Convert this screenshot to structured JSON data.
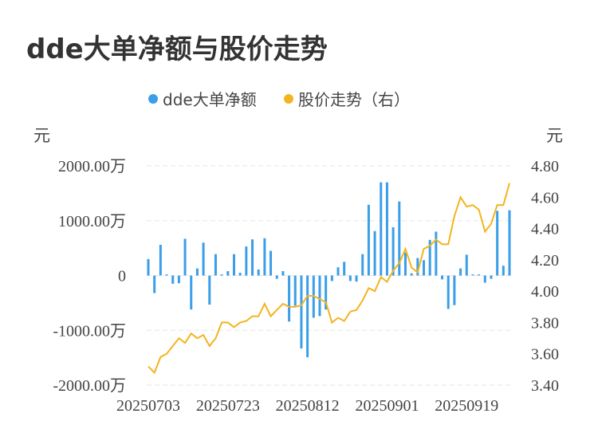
{
  "title": "dde大单净额与股价走势",
  "chart_data": {
    "type": "bar+line",
    "legend": [
      {
        "name": "dde大单净额",
        "color": "#3a9ee8"
      },
      {
        "name": "股价走势（右）",
        "color": "#f3b41f"
      }
    ],
    "left_unit": "元",
    "right_unit": "元",
    "left_ticks": [
      "2000.00万",
      "1000.00万",
      "0",
      "-1000.00万",
      "-2000.00万"
    ],
    "left_ylim": [
      -2000,
      2000
    ],
    "right_ticks": [
      "4.80",
      "4.60",
      "4.40",
      "4.20",
      "4.00",
      "3.80",
      "3.60",
      "3.40"
    ],
    "right_ylim": [
      3.4,
      4.8
    ],
    "x_tick_labels": [
      "20250703",
      "20250723",
      "20250812",
      "20250901",
      "20250919"
    ],
    "x_tick_indices": [
      0,
      13,
      26,
      39,
      52
    ],
    "bar_values": [
      300,
      -320,
      560,
      20,
      -150,
      -140,
      670,
      -620,
      130,
      600,
      -530,
      390,
      20,
      80,
      390,
      50,
      530,
      660,
      110,
      680,
      450,
      -60,
      80,
      -840,
      -550,
      -1330,
      -1490,
      -770,
      -740,
      -620,
      -100,
      150,
      250,
      -100,
      -110,
      390,
      1290,
      810,
      1700,
      1700,
      880,
      1350,
      420,
      40,
      320,
      280,
      650,
      800,
      -70,
      -610,
      -540,
      130,
      380,
      20,
      20,
      -130,
      -60,
      1180,
      180,
      1190
    ],
    "line_values": [
      3.52,
      3.48,
      3.58,
      3.6,
      3.65,
      3.7,
      3.67,
      3.73,
      3.7,
      3.72,
      3.65,
      3.7,
      3.8,
      3.8,
      3.77,
      3.8,
      3.81,
      3.84,
      3.84,
      3.92,
      3.84,
      3.88,
      3.92,
      3.9,
      3.9,
      3.91,
      3.97,
      3.97,
      3.95,
      3.93,
      3.8,
      3.83,
      3.81,
      3.87,
      3.88,
      3.94,
      4.02,
      4.0,
      4.09,
      4.06,
      4.13,
      4.18,
      4.27,
      4.15,
      4.12,
      4.27,
      4.29,
      4.33,
      4.3,
      4.3,
      4.48,
      4.6,
      4.54,
      4.55,
      4.52,
      4.38,
      4.43,
      4.55,
      4.55,
      4.69
    ]
  }
}
